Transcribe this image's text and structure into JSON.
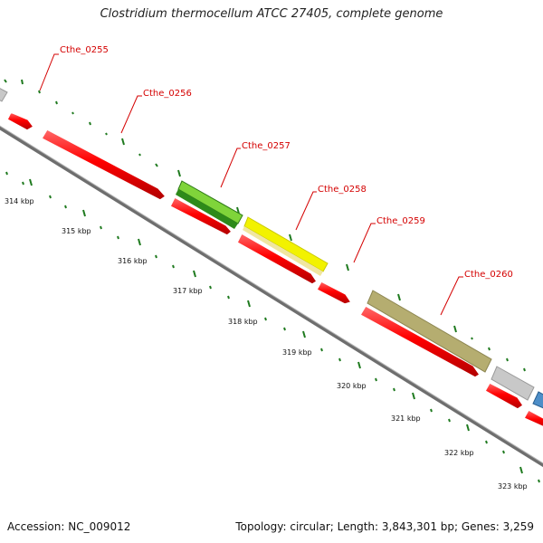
{
  "header": {
    "title": "Clostridium thermocellum ATCC 27405, complete genome"
  },
  "footer": {
    "accession": "Accession: NC_009012",
    "summary": "Topology: circular; Length: 3,843,301 bp; Genes: 3,259"
  },
  "genes": [
    {
      "label": "Cthe_0255"
    },
    {
      "label": "Cthe_0256"
    },
    {
      "label": "Cthe_0257"
    },
    {
      "label": "Cthe_0258"
    },
    {
      "label": "Cthe_0259"
    },
    {
      "label": "Cthe_0260"
    }
  ],
  "kbp_ticks": [
    "314 kbp",
    "315 kbp",
    "316 kbp",
    "317 kbp",
    "318 kbp",
    "319 kbp",
    "320 kbp",
    "321 kbp",
    "322 kbp",
    "323 kbp"
  ],
  "colors": {
    "cds": "#ff0000",
    "backbone": "#7a7a7a",
    "tick": "#1f7a1f",
    "label": "#d40000",
    "green_feature": "#6fcf2f",
    "yellow_feature": "#f2f200",
    "olive_feature": "#b5ad70",
    "grey_feature": "#c8c8c8",
    "blue_feature": "#4d8ec8"
  }
}
